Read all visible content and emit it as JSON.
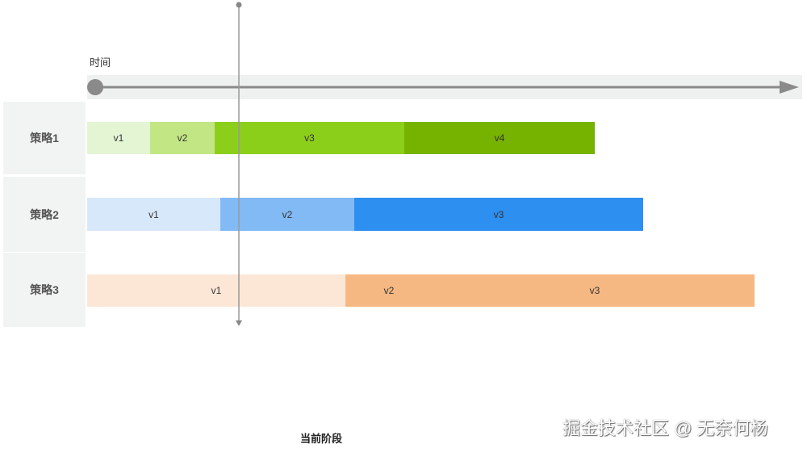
{
  "time_label": "时间",
  "current_stage_label": "当前阶段",
  "watermark": "掘金技术社区 @ 无奈何杨",
  "colors": {
    "axis": "#8a8a8a",
    "axis_band": "#eff1f1",
    "label_bg": "#f2f4f4"
  },
  "strategies": [
    {
      "name": "策略1",
      "segments": [
        {
          "label": "v1",
          "color": "#e3f5d3"
        },
        {
          "label": "v2",
          "color": "#c3e685"
        },
        {
          "label": "v3",
          "color": "#8ccf1b"
        },
        {
          "label": "v4",
          "color": "#76b300"
        }
      ]
    },
    {
      "name": "策略2",
      "segments": [
        {
          "label": "v1",
          "color": "#d8e8fb"
        },
        {
          "label": "v2",
          "color": "#82baf5"
        },
        {
          "label": "v3",
          "color": "#2d8ff0"
        }
      ]
    },
    {
      "name": "策略3",
      "segments": [
        {
          "label": "v1",
          "color": "#fce6d6"
        },
        {
          "label": "v2",
          "color": "#f6b882"
        },
        {
          "label": "v3",
          "color": "#f6b882"
        }
      ]
    }
  ]
}
